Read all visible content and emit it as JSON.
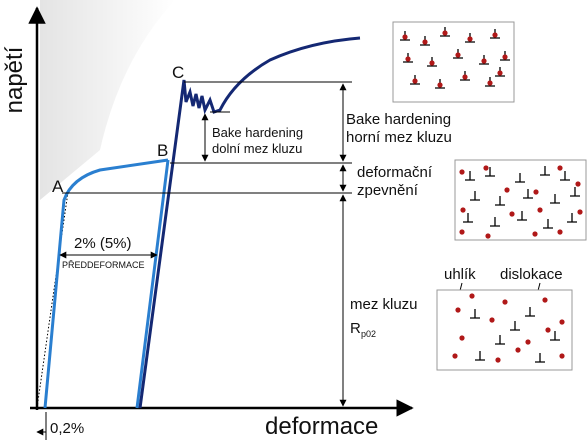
{
  "axes": {
    "y_label": "napětí",
    "x_label": "deformace",
    "offset_label": "0,2%"
  },
  "points": {
    "a": "A",
    "b": "B",
    "c": "C"
  },
  "labels": {
    "predeformation_value": "2% (5%)",
    "predeformation": "PŘEDDEFORMACE",
    "upper": [
      "Bake hardening",
      "horní mez kluzu"
    ],
    "lower": [
      "Bake hardening",
      "dolní mez kluzu"
    ],
    "work_hardening": [
      "deformační",
      "zpevnění"
    ],
    "yield": {
      "line1": "mez kluzu",
      "symbol": "R",
      "subscript": "p02"
    },
    "carbon": "uhlík",
    "dislocation": "dislokace"
  }
}
